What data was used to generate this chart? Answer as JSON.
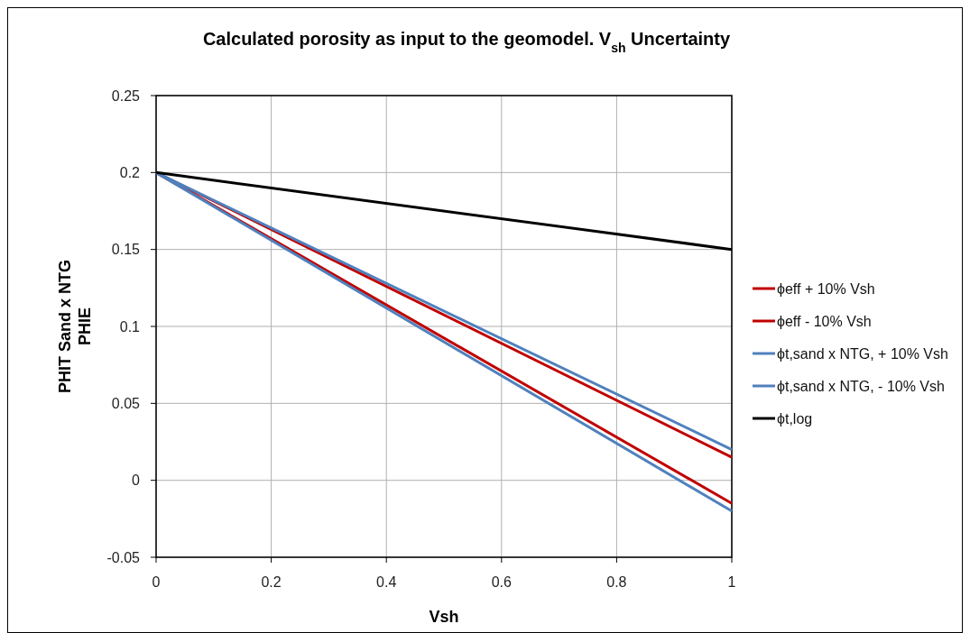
{
  "chart_data": {
    "type": "line",
    "title": "Calculated porosity as input to the geomodel. V$_{sh}$  Uncertainty",
    "xlabel": "Vsh",
    "ylabel": "PHIT Sand x NTG\nPHIE",
    "x": [
      0,
      1
    ],
    "series": [
      {
        "name": "ϕeff + 10% Vsh",
        "color": "#c00000",
        "values": [
          0.2,
          0.015
        ]
      },
      {
        "name": "ϕeff - 10% Vsh",
        "color": "#c00000",
        "values": [
          0.2,
          -0.015
        ]
      },
      {
        "name": "ϕt,sand x NTG, + 10% Vsh",
        "color": "#4f81bd",
        "values": [
          0.2,
          0.02
        ]
      },
      {
        "name": "ϕt,sand x NTG, - 10% Vsh",
        "color": "#4f81bd",
        "values": [
          0.2,
          -0.02
        ]
      },
      {
        "name": "ϕt,log",
        "color": "#000000",
        "values": [
          0.2,
          0.15
        ]
      }
    ],
    "xlim": [
      0,
      1
    ],
    "xticks": [
      0,
      0.2,
      0.4,
      0.6,
      0.8,
      1
    ],
    "ylim": [
      -0.05,
      0.25
    ],
    "yticks": [
      -0.05,
      0,
      0.05,
      0.1,
      0.15,
      0.2,
      0.25
    ],
    "grid": true,
    "legend": "right",
    "marker": "none",
    "line_style": "solid"
  }
}
